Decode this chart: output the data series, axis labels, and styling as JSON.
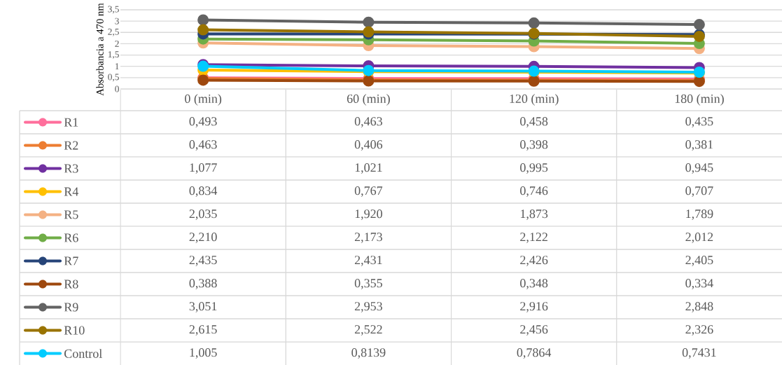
{
  "chart_data": {
    "type": "line",
    "ylabel": "Absorbancia a 470 nm",
    "categories": [
      "0 (min)",
      "60 (min)",
      "120 (min)",
      "180 (min)"
    ],
    "ylim": [
      0,
      3.5
    ],
    "yticks": [
      0,
      {
        "value": 0.5,
        "label": "0,5"
      },
      1,
      {
        "value": 1.5,
        "label": "1,5"
      },
      2,
      {
        "value": 2.5,
        "label": "2,5"
      },
      3,
      {
        "value": 3.5,
        "label": "3,5"
      }
    ],
    "grid": "y",
    "legend": "bottom",
    "marker": "circle",
    "line_style": "solid",
    "series": [
      {
        "name": "R1",
        "color": "#ff6f9c",
        "values": [
          0.493,
          0.463,
          0.458,
          0.435
        ],
        "value_labels": [
          "0,493",
          "0,463",
          "0,458",
          "0,435"
        ]
      },
      {
        "name": "R2",
        "color": "#ed7d31",
        "values": [
          0.463,
          0.406,
          0.398,
          0.381
        ],
        "value_labels": [
          "0,463",
          "0,406",
          "0,398",
          "0,381"
        ]
      },
      {
        "name": "R3",
        "color": "#7030a0",
        "values": [
          1.077,
          1.021,
          0.995,
          0.945
        ],
        "value_labels": [
          "1,077",
          "1,021",
          "0,995",
          "0,945"
        ]
      },
      {
        "name": "R4",
        "color": "#ffc000",
        "values": [
          0.834,
          0.767,
          0.746,
          0.707
        ],
        "value_labels": [
          "0,834",
          "0,767",
          "0,746",
          "0,707"
        ]
      },
      {
        "name": "R5",
        "color": "#f4b183",
        "values": [
          2.035,
          1.92,
          1.873,
          1.789
        ],
        "value_labels": [
          "2,035",
          "1,920",
          "1,873",
          "1,789"
        ]
      },
      {
        "name": "R6",
        "color": "#70ad47",
        "values": [
          2.21,
          2.173,
          2.122,
          2.012
        ],
        "value_labels": [
          "2,210",
          "2,173",
          "2,122",
          "2,012"
        ]
      },
      {
        "name": "R7",
        "color": "#264478",
        "values": [
          2.435,
          2.431,
          2.426,
          2.405
        ],
        "value_labels": [
          "2,435",
          "2,431",
          "2,426",
          "2,405"
        ]
      },
      {
        "name": "R8",
        "color": "#9e480e",
        "values": [
          0.388,
          0.355,
          0.348,
          0.334
        ],
        "value_labels": [
          "0,388",
          "0,355",
          "0,348",
          "0,334"
        ]
      },
      {
        "name": "R9",
        "color": "#636363",
        "values": [
          3.051,
          2.953,
          2.916,
          2.848
        ],
        "value_labels": [
          "3,051",
          "2,953",
          "2,916",
          "2,848"
        ]
      },
      {
        "name": "R10",
        "color": "#997300",
        "values": [
          2.615,
          2.522,
          2.456,
          2.326
        ],
        "value_labels": [
          "2,615",
          "2,522",
          "2,456",
          "2,326"
        ]
      },
      {
        "name": "Control",
        "color": "#00ccff",
        "values": [
          1.005,
          0.8139,
          0.7864,
          0.7431
        ],
        "value_labels": [
          "1,005",
          "0,8139",
          "0,7864",
          "0,7431"
        ]
      }
    ]
  }
}
